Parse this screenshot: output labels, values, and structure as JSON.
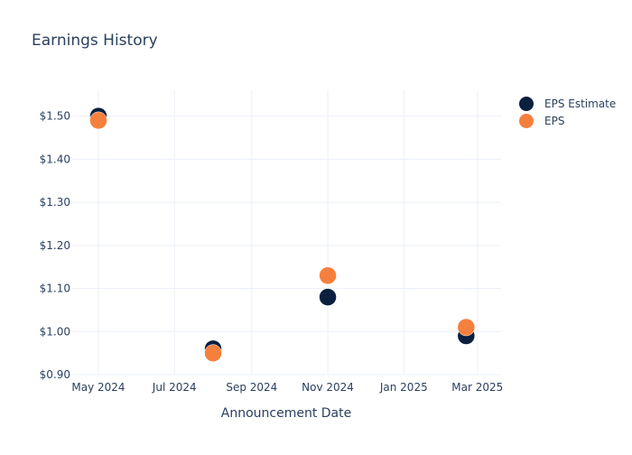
{
  "chart_data": {
    "type": "scatter",
    "title": "Earnings History",
    "xlabel": "Announcement Date",
    "ylabel": "",
    "x_axis": {
      "type": "date",
      "range": [
        "2024-04-10",
        "2025-03-20"
      ],
      "ticks": [
        {
          "value": "2024-05-01",
          "label": "May 2024"
        },
        {
          "value": "2024-07-01",
          "label": "Jul 2024"
        },
        {
          "value": "2024-09-01",
          "label": "Sep 2024"
        },
        {
          "value": "2024-11-01",
          "label": "Nov 2024"
        },
        {
          "value": "2025-01-01",
          "label": "Jan 2025"
        },
        {
          "value": "2025-03-01",
          "label": "Mar 2025"
        }
      ]
    },
    "y_axis": {
      "range": [
        0.9,
        1.56
      ],
      "ticks": [
        {
          "value": 0.9,
          "label": "$0.90"
        },
        {
          "value": 1.0,
          "label": "$1.00"
        },
        {
          "value": 1.1,
          "label": "$1.10"
        },
        {
          "value": 1.2,
          "label": "$1.20"
        },
        {
          "value": 1.3,
          "label": "$1.30"
        },
        {
          "value": 1.4,
          "label": "$1.40"
        },
        {
          "value": 1.5,
          "label": "$1.50"
        }
      ]
    },
    "grid": true,
    "legend_position": "top-right",
    "series": [
      {
        "name": "EPS Estimate",
        "color": "#0b1f3f",
        "points": [
          {
            "x": "2024-05-01",
            "y": 1.5
          },
          {
            "x": "2024-08-01",
            "y": 0.96
          },
          {
            "x": "2024-11-01",
            "y": 1.08
          },
          {
            "x": "2025-02-20",
            "y": 0.99
          }
        ]
      },
      {
        "name": "EPS",
        "color": "#f5803e",
        "points": [
          {
            "x": "2024-05-01",
            "y": 1.49
          },
          {
            "x": "2024-08-01",
            "y": 0.95
          },
          {
            "x": "2024-11-01",
            "y": 1.13
          },
          {
            "x": "2025-02-20",
            "y": 1.01
          }
        ]
      }
    ]
  }
}
